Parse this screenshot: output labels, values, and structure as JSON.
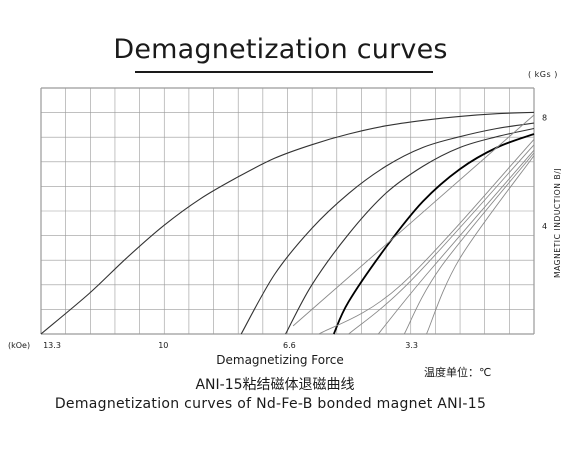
{
  "title": "Demagnetization curves",
  "y_unit": "( kGs )",
  "x_unit": "(kOe)",
  "note": "温度单位：℃",
  "caption_cn": "ANI-15粘结磁体退磁曲线",
  "caption_en": "Demagnetization curves of Nd-Fe-B bonded magnet ANI-15",
  "chart_data": {
    "type": "line",
    "title": "Demagnetization curves",
    "xlabel": "Demagnetizing Force",
    "ylabel": "MAGNETIC INDUCTION B/J",
    "x_unit": "kOe",
    "y_unit": "kGs",
    "x_reversed": true,
    "xlim": [
      0,
      13.3
    ],
    "ylim": [
      0,
      9.1
    ],
    "x_ticks": [
      13.3,
      10,
      6.6,
      3.3
    ],
    "x_tick_labels": [
      "13.3",
      "10",
      "6.6",
      "3.3"
    ],
    "y_ticks": [
      4,
      8
    ],
    "y_tick_labels": [
      "4",
      "8"
    ],
    "grid": true,
    "series": [
      {
        "style": "dark",
        "points": [
          [
            0,
            8.2
          ],
          [
            1,
            8.15
          ],
          [
            2,
            8.05
          ],
          [
            3,
            7.9
          ],
          [
            4,
            7.7
          ],
          [
            5,
            7.4
          ],
          [
            6,
            7.0
          ],
          [
            7,
            6.5
          ],
          [
            8,
            5.8
          ],
          [
            9,
            5.0
          ],
          [
            10,
            4.0
          ],
          [
            11,
            2.8
          ],
          [
            12,
            1.5
          ],
          [
            13.3,
            0
          ]
        ]
      },
      {
        "style": "dark",
        "points": [
          [
            0,
            7.8
          ],
          [
            1,
            7.6
          ],
          [
            2,
            7.3
          ],
          [
            3,
            6.9
          ],
          [
            4,
            6.2
          ],
          [
            5,
            5.2
          ],
          [
            6,
            3.9
          ],
          [
            7,
            2.2
          ],
          [
            7.9,
            0
          ]
        ]
      },
      {
        "style": "dark",
        "points": [
          [
            0,
            7.6
          ],
          [
            1,
            7.3
          ],
          [
            2,
            6.9
          ],
          [
            3,
            6.2
          ],
          [
            4,
            5.2
          ],
          [
            5,
            3.7
          ],
          [
            6,
            1.8
          ],
          [
            6.7,
            0
          ]
        ]
      },
      {
        "style": "bold",
        "points": [
          [
            0,
            7.4
          ],
          [
            1,
            6.9
          ],
          [
            2,
            6.1
          ],
          [
            3,
            4.9
          ],
          [
            4,
            3.2
          ],
          [
            5,
            1.2
          ],
          [
            5.4,
            0
          ]
        ]
      },
      {
        "style": "gray",
        "points": [
          [
            0,
            7.2
          ],
          [
            3.6,
            1.8
          ],
          [
            5.8,
            0
          ]
        ]
      },
      {
        "style": "gray",
        "points": [
          [
            0,
            7.0
          ],
          [
            3.3,
            2.0
          ],
          [
            5.0,
            0
          ]
        ]
      },
      {
        "style": "gray",
        "points": [
          [
            0,
            6.8
          ],
          [
            2.9,
            2.2
          ],
          [
            4.2,
            0
          ]
        ]
      },
      {
        "style": "gray",
        "points": [
          [
            0,
            6.7
          ],
          [
            2.5,
            2.5
          ],
          [
            3.5,
            0
          ]
        ]
      },
      {
        "style": "gray",
        "points": [
          [
            0,
            6.6
          ],
          [
            2.0,
            2.8
          ],
          [
            2.9,
            0
          ]
        ]
      },
      {
        "style": "gray",
        "points": [
          [
            0,
            8.1
          ],
          [
            6.5,
            0.3
          ]
        ]
      }
    ]
  }
}
